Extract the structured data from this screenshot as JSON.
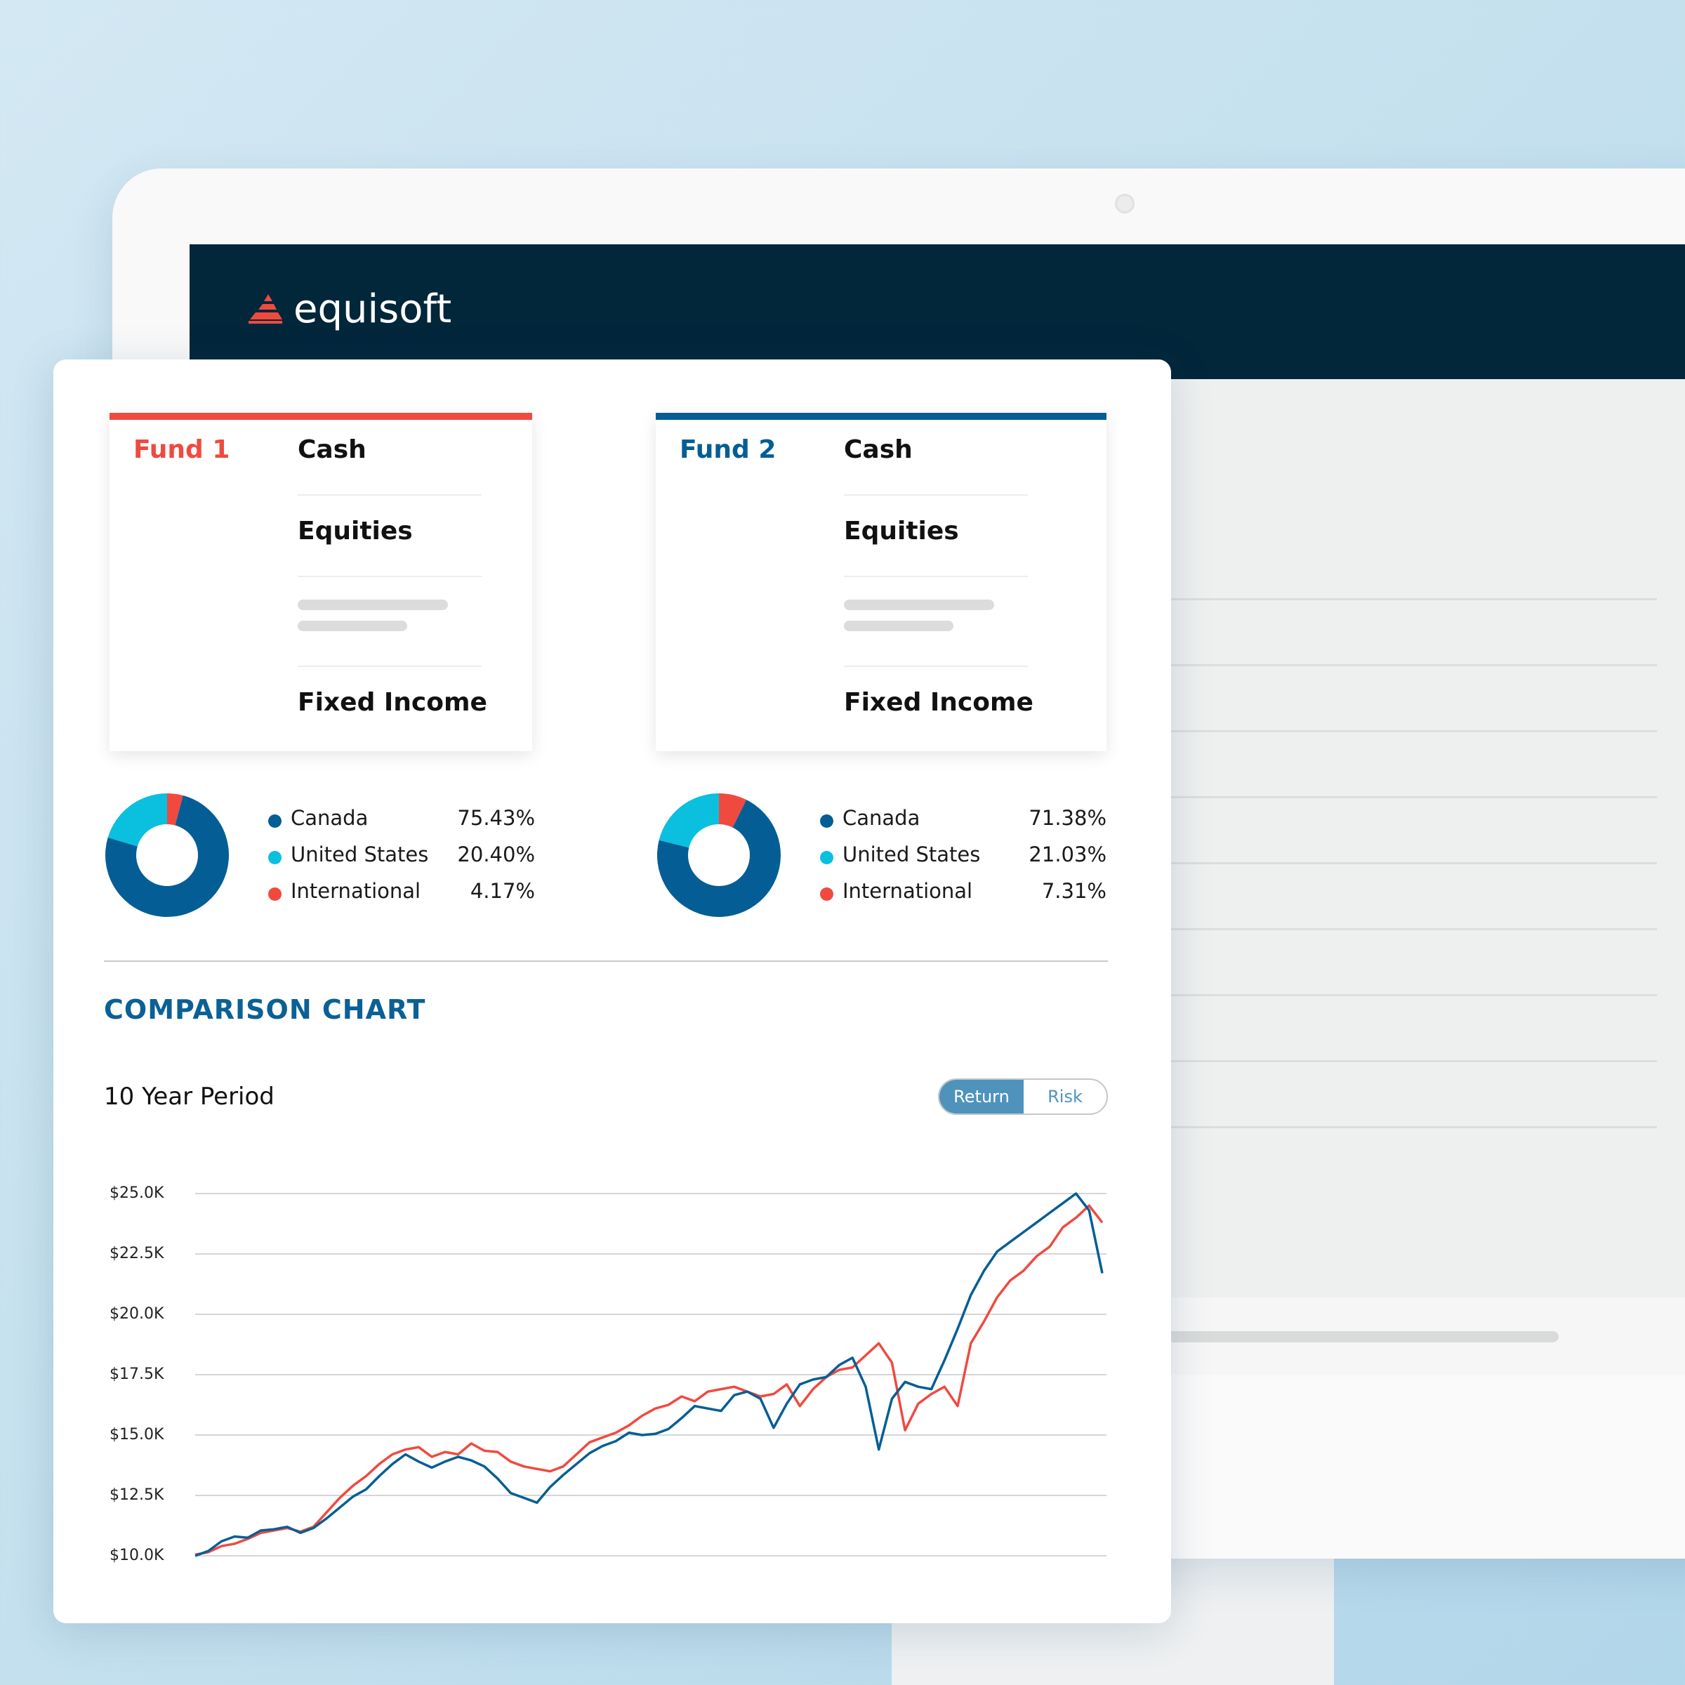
{
  "brand": {
    "name": "equisoft"
  },
  "funds": [
    {
      "name": "Fund 1",
      "accent": "#f04a3f",
      "rows": [
        "Cash",
        "Equities",
        "Fixed Income"
      ],
      "allocation": [
        {
          "label": "Canada",
          "value": "75.43%",
          "pct": 75.43,
          "color": "#045e95"
        },
        {
          "label": "United States",
          "value": "20.40%",
          "pct": 20.4,
          "color": "#0ac0de"
        },
        {
          "label": "International",
          "value": "4.17%",
          "pct": 4.17,
          "color": "#f04a3f"
        }
      ]
    },
    {
      "name": "Fund 2",
      "accent": "#045e95",
      "rows": [
        "Cash",
        "Equities",
        "Fixed Income"
      ],
      "allocation": [
        {
          "label": "Canada",
          "value": "71.38%",
          "pct": 71.38,
          "color": "#045e95"
        },
        {
          "label": "United States",
          "value": "21.03%",
          "pct": 21.03,
          "color": "#0ac0de"
        },
        {
          "label": "International",
          "value": "7.31%",
          "pct": 7.31,
          "color": "#f04a3f"
        }
      ]
    }
  ],
  "comparison": {
    "title": "COMPARISON CHART",
    "period": "10 Year Period",
    "toggle": {
      "active": "Return",
      "inactive": "Risk"
    }
  },
  "chart_data": {
    "type": "line",
    "ytick_labels": [
      "$25.0K",
      "$22.5K",
      "$20.0K",
      "$17.5K",
      "$15.0K",
      "$12.5K",
      "$10.0K"
    ],
    "ylim": [
      10000,
      25000
    ],
    "yticks": [
      25000,
      22500,
      20000,
      17500,
      15000,
      12500,
      10000
    ],
    "grid": true,
    "series": [
      {
        "color": "#f04a3f",
        "values": [
          10050,
          10150,
          10400,
          10500,
          10700,
          10950,
          11050,
          11150,
          11000,
          11200,
          11800,
          12400,
          12900,
          13300,
          13800,
          14200,
          14400,
          14500,
          14100,
          14300,
          14200,
          14650,
          14350,
          14300,
          13900,
          13700,
          13600,
          13500,
          13700,
          14200,
          14700,
          14900,
          15100,
          15400,
          15800,
          16100,
          16250,
          16600,
          16400,
          16800,
          16900,
          17000,
          16800,
          16600,
          16700,
          17100,
          16200,
          16900,
          17400,
          17700,
          17800,
          18300,
          18800,
          18000,
          15200,
          16300,
          16700,
          17000,
          16200,
          18800,
          19700,
          20700,
          21400,
          21800,
          22400,
          22800,
          23600,
          24000,
          24500,
          23800
        ],
        "color_name": "red"
      },
      {
        "color": "#045e95",
        "values": [
          10000,
          10200,
          10600,
          10800,
          10750,
          11050,
          11100,
          11200,
          10950,
          11150,
          11550,
          12000,
          12450,
          12750,
          13300,
          13800,
          14200,
          13900,
          13650,
          13900,
          14100,
          13950,
          13700,
          13200,
          12600,
          12400,
          12200,
          12850,
          13350,
          13800,
          14250,
          14550,
          14750,
          15100,
          15000,
          15050,
          15250,
          15700,
          16200,
          16100,
          16000,
          16650,
          16800,
          16500,
          15300,
          16300,
          17100,
          17300,
          17400,
          17900,
          18200,
          17000,
          14400,
          16500,
          17200,
          17000,
          16900,
          18100,
          19400,
          20800,
          21800,
          22600,
          23000,
          23400,
          23800,
          24200,
          24600,
          25000,
          24300,
          21700
        ],
        "color_name": "blue"
      }
    ]
  }
}
